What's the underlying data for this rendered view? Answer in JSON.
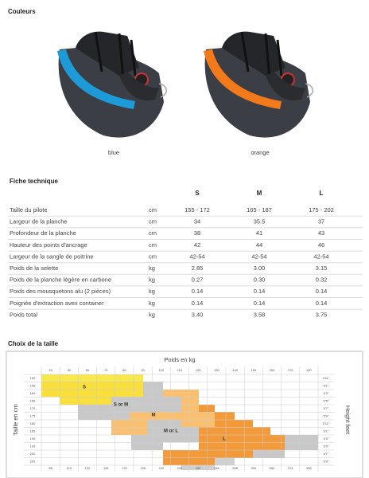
{
  "colors": {
    "title": "Couleurs",
    "items": [
      {
        "label": "blue",
        "color": "#1d9ad8"
      },
      {
        "label": "orange",
        "color": "#f27a1a"
      }
    ]
  },
  "specs": {
    "title": "Fiche technique",
    "columns": [
      "S",
      "M",
      "L"
    ],
    "rows": [
      [
        "Taille du pilote",
        "cm",
        "155 - 172",
        "165 - 187",
        "175 - 202"
      ],
      [
        "Largeur de la planche",
        "cm",
        "34",
        "35.5",
        "37"
      ],
      [
        "Profondeur de la planche",
        "cm",
        "38",
        "41",
        "43"
      ],
      [
        "Hauteur des points d'ancrage",
        "cm",
        "42",
        "44",
        "46"
      ],
      [
        "Largeur de la sangle de poitrine",
        "cm",
        "42-54",
        "42-54",
        "42-54"
      ],
      [
        "Poids de la selette",
        "kg",
        "2.85",
        "3.00",
        "3.15"
      ],
      [
        "Poids de la planche légère en carbone",
        "kg",
        "0.27",
        "0.30",
        "0.32"
      ],
      [
        "Poids des mousquetons alu (2 pièces)",
        "kg",
        "0.14",
        "0.14",
        "0.14"
      ],
      [
        "Poignée d'extraction avex container",
        "kg",
        "0.14",
        "0.14",
        "0.14"
      ],
      [
        "Poids total",
        "kg",
        "3.40",
        "3.58",
        "3.75"
      ]
    ]
  },
  "size_chart": {
    "title": "Choix de la taille",
    "top_label": "Poids en kg",
    "left_label": "Taille en cm",
    "right_label": "Height feet",
    "kg": [
      "40",
      "50",
      "60",
      "70",
      "80",
      "90",
      "100",
      "110",
      "120",
      "130",
      "140",
      "150",
      "160",
      "170",
      "180"
    ],
    "lbs": [
      "88",
      "110",
      "132",
      "154",
      "176",
      "198",
      "220",
      "242",
      "264",
      "286",
      "308",
      "330",
      "352",
      "374",
      "396"
    ],
    "cm": [
      "150",
      "155",
      "160",
      "165",
      "170",
      "175",
      "180",
      "185",
      "190",
      "195",
      "200",
      "205"
    ],
    "feet": [
      "4'11\"",
      "5'1\"",
      "5'3\"",
      "5'5\"",
      "5'7\"",
      "5'9\"",
      "5'11\"",
      "6'1\"",
      "6'3\"",
      "6'5\"",
      "6'7\"",
      "6'9\""
    ],
    "zones": [
      "S",
      "S or M",
      "M",
      "M or L",
      "L"
    ]
  }
}
